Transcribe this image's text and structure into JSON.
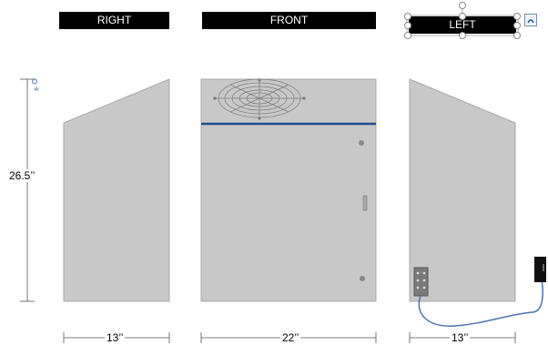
{
  "views": {
    "right": {
      "label": "RIGHT"
    },
    "front": {
      "label": "FRONT"
    },
    "left": {
      "label": "LEFT"
    }
  },
  "dimensions": {
    "height": "26.5’’",
    "right_width": "13’’",
    "front_width": "22’’",
    "left_width": "13’’"
  },
  "colors": {
    "panel": "#c8c8c8",
    "stripe": "#1f4e8c",
    "label_bg": "#000000",
    "cable": "#4a74b0"
  },
  "icons": {
    "fan": "fan-grille-icon",
    "rotate": "rotate-handle-icon",
    "layout_options": "layout-options-icon",
    "anchor": "anchor-icon"
  }
}
